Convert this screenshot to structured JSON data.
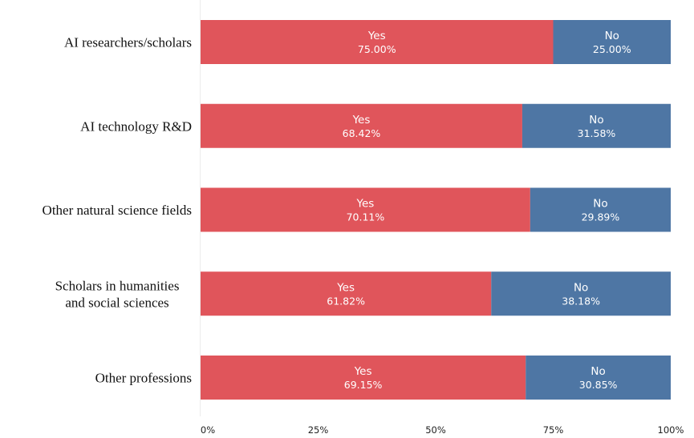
{
  "chart_data": {
    "type": "bar",
    "orientation": "horizontal",
    "stacked": true,
    "percent": true,
    "categories": [
      "AI researchers/scholars",
      "AI technology R&D",
      "Other natural science fields",
      "Scholars in humanities and social sciences",
      "Other professions"
    ],
    "category_lines": [
      [
        "AI researchers/scholars"
      ],
      [
        "AI technology R&D"
      ],
      [
        "Other natural science fields"
      ],
      [
        "Scholars in humanities",
        "and social sciences"
      ],
      [
        "Other professions"
      ]
    ],
    "series": [
      {
        "name": "Yes",
        "color": "#e0555b",
        "values": [
          75.0,
          68.42,
          70.11,
          61.82,
          69.15
        ],
        "labels": [
          "75.00%",
          "68.42%",
          "70.11%",
          "61.82%",
          "69.15%"
        ]
      },
      {
        "name": "No",
        "color": "#4e76a4",
        "values": [
          25.0,
          31.58,
          29.89,
          38.18,
          30.85
        ],
        "labels": [
          "25.00%",
          "31.58%",
          "29.89%",
          "38.18%",
          "30.85%"
        ]
      }
    ],
    "xlim": [
      0,
      100
    ],
    "x_ticks": [
      0,
      25,
      50,
      75,
      100
    ],
    "x_tick_labels": [
      "0%",
      "25%",
      "50%",
      "75%",
      "100%"
    ],
    "grid": false,
    "legend": "none"
  }
}
